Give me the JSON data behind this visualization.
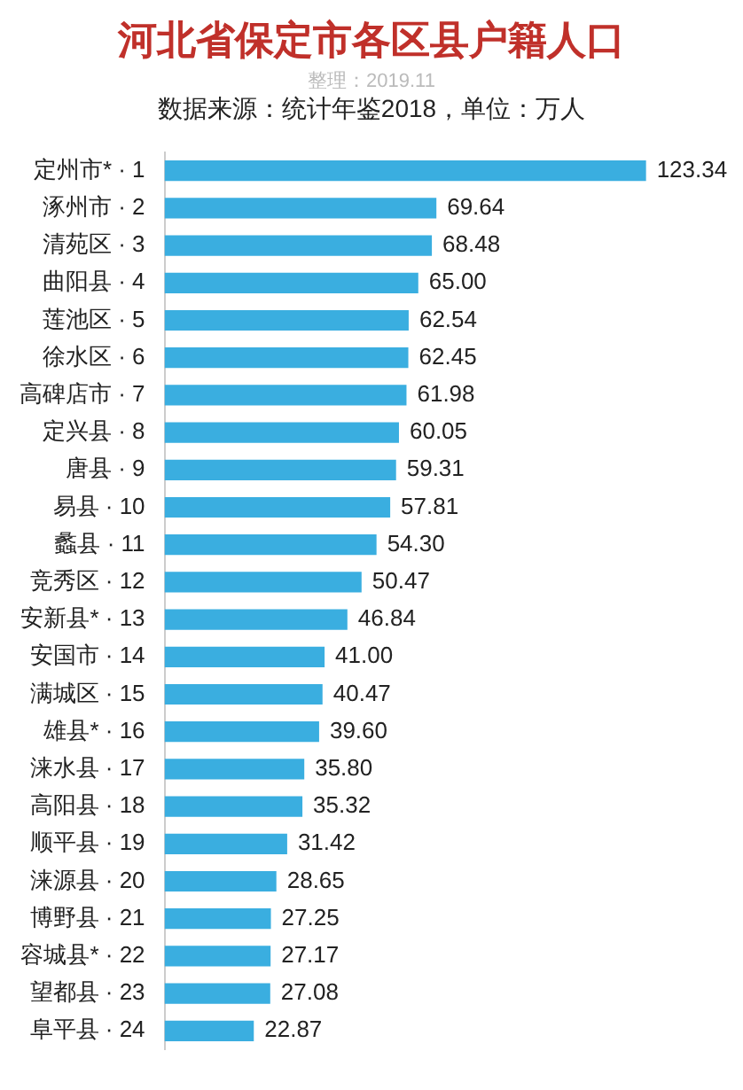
{
  "chart_data": {
    "type": "bar",
    "orientation": "horizontal",
    "title": "河北省保定市各区县户籍人口",
    "subtitle": "数据来源：统计年鉴2018，单位：万人",
    "annotations": [
      "整理：2019.11"
    ],
    "categories": [
      "定州市* · 1",
      "涿州市 · 2",
      "清苑区 · 3",
      "曲阳县 · 4",
      "莲池区 · 5",
      "徐水区 · 6",
      "高碑店市 · 7",
      "定兴县 · 8",
      "唐县 · 9",
      "易县 · 10",
      "蠡县 · 11",
      "竞秀区 · 12",
      "安新县* · 13",
      "安国市 · 14",
      "满城区 · 15",
      "雄县* · 16",
      "涞水县 · 17",
      "高阳县 · 18",
      "顺平县 · 19",
      "涞源县 · 20",
      "博野县 · 21",
      "容城县* · 22",
      "望都县 · 23",
      "阜平县 · 24"
    ],
    "values": [
      123.34,
      69.64,
      68.48,
      65.0,
      62.54,
      62.45,
      61.98,
      60.05,
      59.31,
      57.81,
      54.3,
      50.47,
      46.84,
      41.0,
      40.47,
      39.6,
      35.8,
      35.32,
      31.42,
      28.65,
      27.25,
      27.17,
      27.08,
      22.87
    ],
    "value_labels": [
      "123.34",
      "69.64",
      "68.48",
      "65.00",
      "62.54",
      "62.45",
      "61.98",
      "60.05",
      "59.31",
      "57.81",
      "54.30",
      "50.47",
      "46.84",
      "41.00",
      "40.47",
      "39.60",
      "35.80",
      "35.32",
      "31.42",
      "28.65",
      "27.25",
      "27.17",
      "27.08",
      "22.87"
    ],
    "color": "#3aaee0"
  }
}
